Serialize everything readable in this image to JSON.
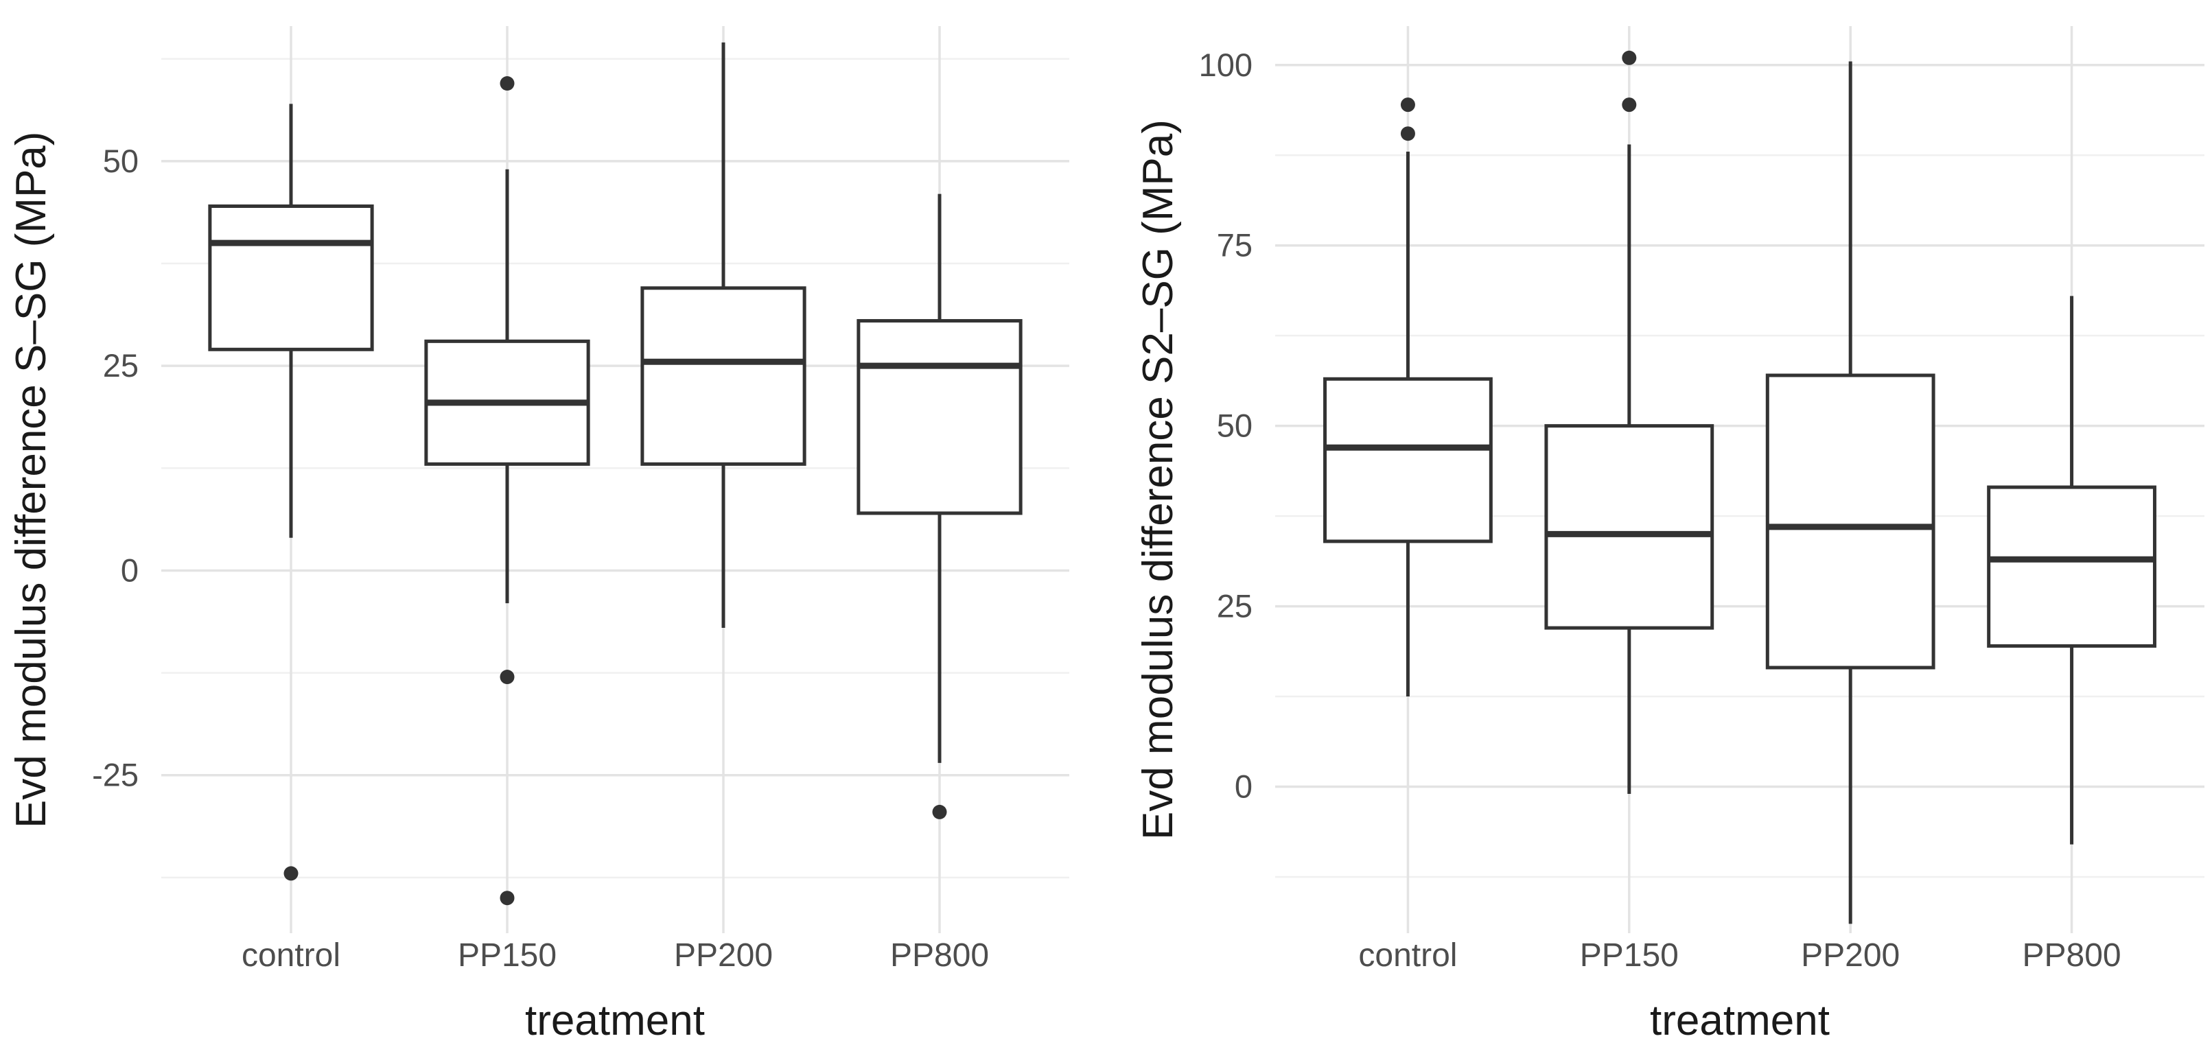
{
  "figure": {
    "background": "#ffffff",
    "description": "Two ggplot-style box plots of Evd modulus differences by treatment"
  },
  "style": {
    "box_stroke": "#333333",
    "box_fill": "#ffffff",
    "median_stroke_width": 9,
    "box_stroke_width": 5,
    "whisker_stroke_width": 5,
    "grid_major_color": "#e3e3e3",
    "grid_minor_color": "#f0f0f0",
    "grid_major_width": 3.5,
    "grid_minor_width": 2.5,
    "tick_text_color": "#4d4d4d",
    "title_text_color": "#1a1a1a",
    "outlier_color": "#333333",
    "outlier_radius": 10.5,
    "tick_font_size": 47,
    "category_font_size": 48
  },
  "chart_data": [
    {
      "type": "boxplot",
      "panel": "left",
      "ylabel": "Evd modulus difference S–SG (MPa)",
      "xlabel": "treatment",
      "categories": [
        "control",
        "PP150",
        "PP200",
        "PP800"
      ],
      "yticks": [
        -25,
        0,
        25,
        50
      ],
      "ytick_labels": [
        "-25",
        "0",
        "25",
        "50"
      ],
      "ylim": [
        -44.3,
        66.5
      ],
      "grid": true,
      "legend": "none",
      "series": [
        {
          "category": "control",
          "whisker_low": 4,
          "q1": 27,
          "median": 40,
          "q3": 44.5,
          "whisker_high": 57,
          "outliers": [
            -37
          ]
        },
        {
          "category": "PP150",
          "whisker_low": -4,
          "q1": 13,
          "median": 20.5,
          "q3": 28,
          "whisker_high": 49,
          "outliers": [
            59.5,
            -13,
            -40
          ]
        },
        {
          "category": "PP200",
          "whisker_low": -7,
          "q1": 13,
          "median": 25.5,
          "q3": 34.5,
          "whisker_high": 64.5,
          "outliers": []
        },
        {
          "category": "PP800",
          "whisker_low": -23.5,
          "q1": 7,
          "median": 25,
          "q3": 30.5,
          "whisker_high": 46,
          "outliers": [
            -29.5
          ]
        }
      ]
    },
    {
      "type": "boxplot",
      "panel": "right",
      "ylabel": "Evd modulus difference S2–SG (MPa)",
      "xlabel": "treatment",
      "categories": [
        "control",
        "PP150",
        "PP200",
        "PP800"
      ],
      "yticks": [
        0,
        25,
        50,
        75,
        100
      ],
      "ytick_labels": [
        "0",
        "25",
        "50",
        "75",
        "100"
      ],
      "ylim": [
        -20.3,
        105.4
      ],
      "grid": true,
      "legend": "none",
      "series": [
        {
          "category": "control",
          "whisker_low": 12.5,
          "q1": 34,
          "median": 47,
          "q3": 56.5,
          "whisker_high": 88,
          "outliers": [
            90.5,
            94.5
          ]
        },
        {
          "category": "PP150",
          "whisker_low": -1,
          "q1": 22,
          "median": 35,
          "q3": 50,
          "whisker_high": 89,
          "outliers": [
            94.5,
            101
          ]
        },
        {
          "category": "PP200",
          "whisker_low": -19,
          "q1": 16.5,
          "median": 36,
          "q3": 57,
          "whisker_high": 100.5,
          "outliers": []
        },
        {
          "category": "PP800",
          "whisker_low": -8,
          "q1": 19.5,
          "median": 31.5,
          "q3": 41.5,
          "whisker_high": 68,
          "outliers": []
        }
      ]
    }
  ]
}
